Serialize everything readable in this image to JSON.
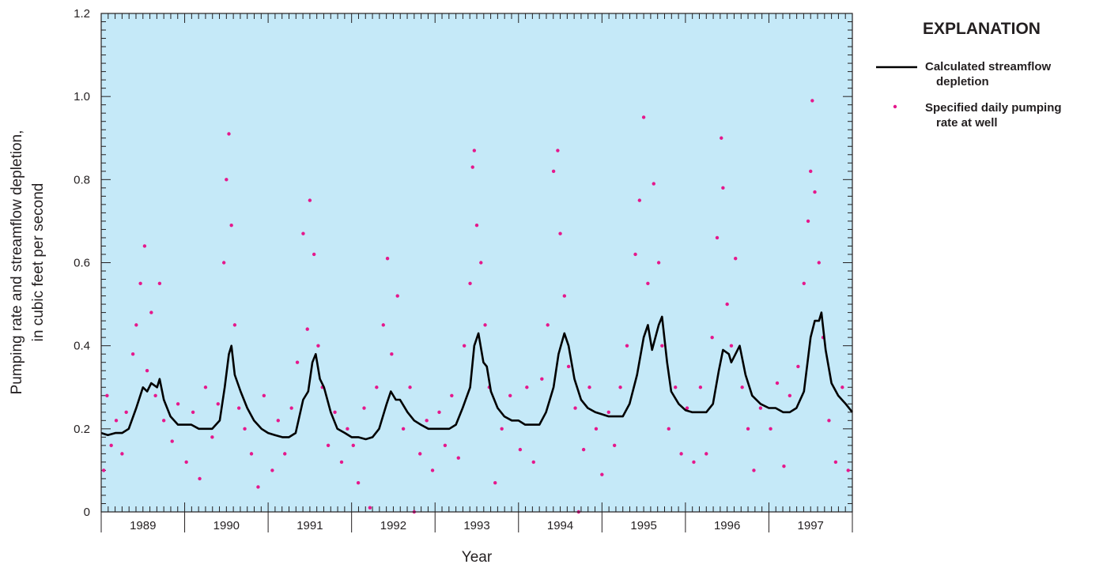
{
  "chart_data": {
    "type": "line",
    "xlabel": "Year",
    "ylabel": [
      "Pumping rate and streamflow depletion,",
      "in cubic feet per second"
    ],
    "legend_title": "EXPLANATION",
    "legend": "right",
    "background": "#c5e9f8",
    "xlim": [
      1989,
      1998
    ],
    "xticks": [
      1989,
      1990,
      1991,
      1992,
      1993,
      1994,
      1995,
      1996,
      1997,
      1998
    ],
    "x_minor_divisions": 12,
    "year_labels": [
      {
        "value": 1989.5,
        "label": "1989"
      },
      {
        "value": 1990.5,
        "label": "1990"
      },
      {
        "value": 1991.5,
        "label": "1991"
      },
      {
        "value": 1992.5,
        "label": "1992"
      },
      {
        "value": 1993.5,
        "label": "1993"
      },
      {
        "value": 1994.5,
        "label": "1994"
      },
      {
        "value": 1995.5,
        "label": "1995"
      },
      {
        "value": 1996.5,
        "label": "1996"
      },
      {
        "value": 1997.5,
        "label": "1997"
      }
    ],
    "ylim": [
      0,
      1.2
    ],
    "yticks": [
      0,
      0.2,
      0.4,
      0.6,
      0.8,
      {
        "value": 1,
        "label": "1.0"
      },
      1.2
    ],
    "y_minor_divisions": 10,
    "series": [
      {
        "name": "Calculated streamflow depletion",
        "type": "line",
        "color": "#000000",
        "x": [
          1989.0,
          1989.08,
          1989.17,
          1989.25,
          1989.33,
          1989.42,
          1989.5,
          1989.55,
          1989.6,
          1989.67,
          1989.7,
          1989.75,
          1989.83,
          1989.92,
          1990.0,
          1990.08,
          1990.17,
          1990.25,
          1990.33,
          1990.42,
          1990.48,
          1990.53,
          1990.56,
          1990.6,
          1990.67,
          1990.75,
          1990.83,
          1990.92,
          1991.0,
          1991.08,
          1991.17,
          1991.25,
          1991.33,
          1991.42,
          1991.48,
          1991.53,
          1991.57,
          1991.62,
          1991.67,
          1991.75,
          1991.83,
          1991.92,
          1992.0,
          1992.08,
          1992.17,
          1992.25,
          1992.33,
          1992.42,
          1992.47,
          1992.53,
          1992.58,
          1992.67,
          1992.75,
          1992.83,
          1992.92,
          1993.0,
          1993.08,
          1993.17,
          1993.25,
          1993.33,
          1993.42,
          1993.47,
          1993.52,
          1993.58,
          1993.62,
          1993.67,
          1993.75,
          1993.83,
          1993.92,
          1994.0,
          1994.08,
          1994.17,
          1994.25,
          1994.33,
          1994.42,
          1994.48,
          1994.55,
          1994.6,
          1994.67,
          1994.75,
          1994.83,
          1994.92,
          1995.0,
          1995.08,
          1995.17,
          1995.25,
          1995.33,
          1995.42,
          1995.5,
          1995.55,
          1995.6,
          1995.68,
          1995.72,
          1995.78,
          1995.83,
          1995.92,
          1996.0,
          1996.08,
          1996.17,
          1996.25,
          1996.33,
          1996.4,
          1996.45,
          1996.52,
          1996.55,
          1996.6,
          1996.65,
          1996.72,
          1996.8,
          1996.9,
          1997.0,
          1997.08,
          1997.17,
          1997.25,
          1997.33,
          1997.42,
          1997.5,
          1997.55,
          1997.6,
          1997.63,
          1997.68,
          1997.75,
          1997.83,
          1997.92,
          1998.0
        ],
        "values": [
          0.19,
          0.185,
          0.19,
          0.19,
          0.2,
          0.25,
          0.3,
          0.29,
          0.31,
          0.3,
          0.32,
          0.27,
          0.23,
          0.21,
          0.21,
          0.21,
          0.2,
          0.2,
          0.2,
          0.22,
          0.3,
          0.38,
          0.4,
          0.33,
          0.29,
          0.25,
          0.22,
          0.2,
          0.19,
          0.185,
          0.18,
          0.18,
          0.19,
          0.27,
          0.29,
          0.36,
          0.38,
          0.32,
          0.3,
          0.24,
          0.2,
          0.19,
          0.18,
          0.18,
          0.175,
          0.18,
          0.2,
          0.26,
          0.29,
          0.27,
          0.27,
          0.24,
          0.22,
          0.21,
          0.2,
          0.2,
          0.2,
          0.2,
          0.21,
          0.25,
          0.3,
          0.4,
          0.43,
          0.36,
          0.35,
          0.29,
          0.25,
          0.23,
          0.22,
          0.22,
          0.21,
          0.21,
          0.21,
          0.24,
          0.3,
          0.38,
          0.43,
          0.4,
          0.32,
          0.27,
          0.25,
          0.24,
          0.235,
          0.23,
          0.23,
          0.23,
          0.26,
          0.33,
          0.42,
          0.45,
          0.39,
          0.45,
          0.47,
          0.36,
          0.29,
          0.26,
          0.245,
          0.24,
          0.24,
          0.24,
          0.26,
          0.34,
          0.39,
          0.38,
          0.36,
          0.38,
          0.4,
          0.33,
          0.28,
          0.26,
          0.25,
          0.25,
          0.24,
          0.24,
          0.25,
          0.29,
          0.42,
          0.46,
          0.46,
          0.48,
          0.39,
          0.31,
          0.28,
          0.26,
          0.24
        ]
      },
      {
        "name": "Specified daily pumping rate at well",
        "type": "scatter",
        "color": "#e5188c",
        "x": [
          1989.03,
          1989.07,
          1989.12,
          1989.18,
          1989.25,
          1989.3,
          1989.38,
          1989.42,
          1989.47,
          1989.52,
          1989.55,
          1989.6,
          1989.65,
          1989.7,
          1989.75,
          1989.85,
          1989.92,
          1990.02,
          1990.1,
          1990.18,
          1990.25,
          1990.33,
          1990.4,
          1990.47,
          1990.5,
          1990.53,
          1990.56,
          1990.6,
          1990.65,
          1990.72,
          1990.8,
          1990.88,
          1990.95,
          1991.05,
          1991.12,
          1991.2,
          1991.28,
          1991.35,
          1991.42,
          1991.47,
          1991.5,
          1991.55,
          1991.6,
          1991.65,
          1991.72,
          1991.8,
          1991.88,
          1991.95,
          1992.02,
          1992.08,
          1992.15,
          1992.22,
          1992.3,
          1992.38,
          1992.43,
          1992.48,
          1992.55,
          1992.62,
          1992.7,
          1992.75,
          1992.82,
          1992.9,
          1992.97,
          1993.05,
          1993.12,
          1993.2,
          1993.28,
          1993.35,
          1993.42,
          1993.45,
          1993.47,
          1993.5,
          1993.55,
          1993.6,
          1993.65,
          1993.72,
          1993.8,
          1993.9,
          1994.02,
          1994.1,
          1994.18,
          1994.28,
          1994.35,
          1994.42,
          1994.47,
          1994.5,
          1994.55,
          1994.6,
          1994.68,
          1994.72,
          1994.78,
          1994.85,
          1994.93,
          1995.0,
          1995.08,
          1995.15,
          1995.22,
          1995.3,
          1995.4,
          1995.45,
          1995.5,
          1995.55,
          1995.62,
          1995.68,
          1995.72,
          1995.8,
          1995.88,
          1995.95,
          1996.02,
          1996.1,
          1996.18,
          1996.25,
          1996.32,
          1996.38,
          1996.43,
          1996.45,
          1996.5,
          1996.55,
          1996.6,
          1996.68,
          1996.75,
          1996.82,
          1996.9,
          1997.02,
          1997.1,
          1997.18,
          1997.25,
          1997.35,
          1997.42,
          1997.47,
          1997.5,
          1997.52,
          1997.55,
          1997.6,
          1997.65,
          1997.72,
          1997.8,
          1997.88,
          1997.95
        ],
        "values": [
          0.1,
          0.28,
          0.16,
          0.22,
          0.14,
          0.24,
          0.38,
          0.45,
          0.55,
          0.64,
          0.34,
          0.48,
          0.28,
          0.55,
          0.22,
          0.17,
          0.26,
          0.12,
          0.24,
          0.08,
          0.3,
          0.18,
          0.26,
          0.6,
          0.8,
          0.91,
          0.69,
          0.45,
          0.25,
          0.2,
          0.14,
          0.06,
          0.28,
          0.1,
          0.22,
          0.14,
          0.25,
          0.36,
          0.67,
          0.44,
          0.75,
          0.62,
          0.4,
          0.3,
          0.16,
          0.24,
          0.12,
          0.2,
          0.16,
          0.07,
          0.25,
          0.01,
          0.3,
          0.45,
          0.61,
          0.38,
          0.52,
          0.2,
          0.3,
          0,
          0.14,
          0.22,
          0.1,
          0.24,
          0.16,
          0.28,
          0.13,
          0.4,
          0.55,
          0.83,
          0.87,
          0.69,
          0.6,
          0.45,
          0.3,
          0.07,
          0.2,
          0.28,
          0.15,
          0.3,
          0.12,
          0.32,
          0.45,
          0.82,
          0.87,
          0.67,
          0.52,
          0.35,
          0.25,
          0,
          0.15,
          0.3,
          0.2,
          0.09,
          0.24,
          0.16,
          0.3,
          0.4,
          0.62,
          0.75,
          0.95,
          0.55,
          0.79,
          0.6,
          0.4,
          0.2,
          0.3,
          0.14,
          0.25,
          0.12,
          0.3,
          0.14,
          0.42,
          0.66,
          0.9,
          0.78,
          0.5,
          0.4,
          0.61,
          0.3,
          0.2,
          0.1,
          0.25,
          0.2,
          0.31,
          0.11,
          0.28,
          0.35,
          0.55,
          0.7,
          0.82,
          0.99,
          0.77,
          0.6,
          0.42,
          0.22,
          0.12,
          0.3,
          0.1
        ]
      }
    ]
  }
}
